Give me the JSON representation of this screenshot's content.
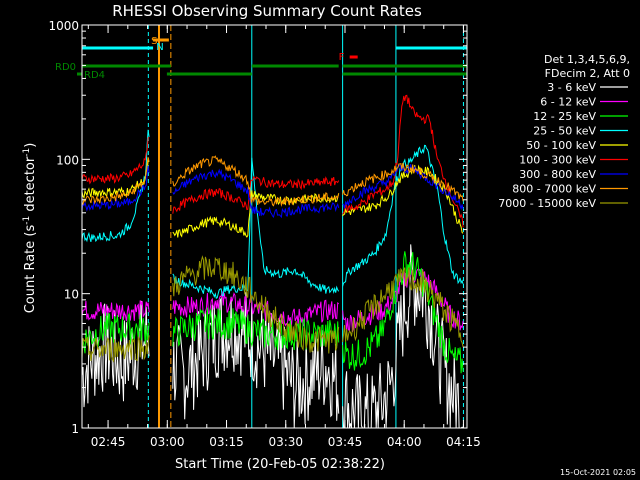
{
  "chart_data": {
    "type": "line",
    "title": "RHESSI Observing Summary Count Rates",
    "xlabel": "Start Time (20-Feb-05 02:38:22)",
    "ylabel_main": "Count Rate (s",
    "ylabel_sup1": "-1",
    "ylabel_mid": " detector",
    "ylabel_sup2": "-1",
    "ylabel_end": ")",
    "yscale": "log",
    "ylim": [
      1,
      1000
    ],
    "xlim_minutes": [
      0,
      97.5
    ],
    "x_ticks": [
      {
        "label": "02:45",
        "min": 6.6
      },
      {
        "label": "03:00",
        "min": 21.6
      },
      {
        "label": "03:15",
        "min": 36.6
      },
      {
        "label": "03:30",
        "min": 51.6
      },
      {
        "label": "03:45",
        "min": 66.6
      },
      {
        "label": "04:00",
        "min": 81.6
      },
      {
        "label": "04:15",
        "min": 96.6
      }
    ],
    "y_ticks": [
      {
        "label": "1",
        "value": 1
      },
      {
        "label": "10",
        "value": 10
      },
      {
        "label": "100",
        "value": 100
      },
      {
        "label": "1000",
        "value": 1000
      }
    ],
    "legend": {
      "position": "right",
      "header1": "Det 1,3,4,5,6,9,",
      "header2": "FDecim 2, Att 0",
      "items": [
        {
          "label": "3 - 6 keV",
          "color": "#ffffff"
        },
        {
          "label": "6 - 12 keV",
          "color": "#ff00ff"
        },
        {
          "label": "12 - 25 keV",
          "color": "#00ff00"
        },
        {
          "label": "25 - 50 keV",
          "color": "#00ffff"
        },
        {
          "label": "50 - 100 keV",
          "color": "#ffff00"
        },
        {
          "label": "100 - 300 keV",
          "color": "#ff0000"
        },
        {
          "label": "300 - 800 keV",
          "color": "#0000ff"
        },
        {
          "label": "800 - 7000 keV",
          "color": "#ff9900"
        },
        {
          "label": "7000 - 15000 keV",
          "color": "#999900"
        }
      ]
    },
    "flags": [
      {
        "label": "RD0",
        "color": "#008800",
        "segments_min": [
          [
            0,
            22.5
          ],
          [
            43,
            65
          ],
          [
            66,
            97.5
          ]
        ]
      },
      {
        "label": "RD4",
        "color": "#008800",
        "segments_min": [
          [
            21.5,
            43
          ],
          [
            66,
            97.5
          ]
        ]
      }
    ],
    "annotations": [
      {
        "label": "S",
        "color": "#ff9900",
        "min": 17.5
      },
      {
        "label": "N",
        "color": "#00ffff",
        "min": 18.8
      },
      {
        "label": "F",
        "color": "#ff0000",
        "min": 65
      }
    ],
    "markers": {
      "saa_cyan_min": [
        16.8,
        43,
        66,
        79.5,
        96.6
      ],
      "night_orange_min": [
        19.5,
        22.5
      ],
      "cyan_bar_segments_min": [
        [
          0,
          18
        ],
        [
          79.5,
          97.5
        ]
      ],
      "saa_bar_segments_min": [
        [
          18,
          22
        ]
      ]
    },
    "timestamp": "15-Oct-2021 02:05",
    "series": [
      {
        "name": "3 - 6 keV",
        "color": "#ffffff",
        "x": [
          0,
          2,
          4,
          6,
          8,
          10,
          12,
          14,
          16,
          17,
          23,
          26,
          30,
          34,
          38,
          42,
          45,
          50,
          54,
          58,
          62,
          65,
          67,
          70,
          73,
          76,
          78,
          80,
          82,
          84,
          86,
          88,
          90,
          92,
          94,
          96.5
        ],
        "y": [
          2.5,
          3.2,
          3.6,
          4,
          3.5,
          3,
          3.5,
          4,
          4.5,
          5,
          3,
          2.5,
          3.5,
          5,
          6,
          5,
          4,
          3,
          2,
          2.5,
          3,
          2,
          1.5,
          1.2,
          1.2,
          1.5,
          2,
          4,
          9,
          12,
          11,
          8,
          4,
          2.5,
          1.8,
          1.3
        ]
      },
      {
        "name": "6 - 12 keV",
        "color": "#ff00ff",
        "x": [
          0,
          3,
          6,
          9,
          12,
          16,
          17,
          23,
          26,
          30,
          34,
          38,
          42,
          46,
          50,
          54,
          58,
          62,
          65,
          67,
          70,
          73,
          76,
          79,
          81,
          83,
          85,
          87,
          89,
          91,
          93,
          96.5
        ],
        "y": [
          7.5,
          7.5,
          7.5,
          7.5,
          7.5,
          7.5,
          7.5,
          8,
          8,
          8,
          9,
          8.5,
          8,
          7.5,
          7,
          6.5,
          7,
          7.5,
          7.5,
          6,
          6.5,
          7,
          7.5,
          9,
          12,
          14,
          14,
          13,
          11,
          9,
          7,
          6
        ]
      },
      {
        "name": "12 - 25 keV",
        "color": "#00ff00",
        "x": [
          0,
          3,
          6,
          9,
          12,
          16,
          17,
          23,
          26,
          30,
          34,
          38,
          42,
          46,
          50,
          54,
          58,
          62,
          65,
          67,
          70,
          73,
          76,
          78,
          80,
          82,
          84,
          86,
          88,
          90,
          92,
          94,
          96.5
        ],
        "y": [
          4.5,
          5,
          5.5,
          5.5,
          5.5,
          5.5,
          5.5,
          5,
          5.5,
          6,
          6,
          6,
          5.5,
          5,
          5,
          5,
          5,
          5,
          5,
          3.5,
          3.5,
          4,
          5,
          8,
          12,
          17,
          16,
          13,
          9,
          6,
          4,
          3.2,
          3
        ]
      },
      {
        "name": "25 - 50 keV",
        "color": "#00ffff",
        "x": [
          0,
          3,
          6,
          9,
          12,
          14,
          16,
          16.8,
          23,
          26,
          30,
          34,
          38,
          42,
          43,
          46,
          50,
          54,
          58,
          62,
          65,
          66,
          68,
          71,
          74,
          77,
          79,
          81,
          83,
          85,
          87,
          88,
          90,
          92,
          94,
          96.5
        ],
        "y": [
          27,
          26,
          27,
          27,
          32,
          45,
          75,
          170,
          13,
          12,
          11,
          10,
          11,
          11,
          100,
          15,
          14,
          15,
          12,
          10.5,
          11,
          12,
          15,
          17,
          20,
          28,
          60,
          90,
          95,
          110,
          125,
          100,
          60,
          25,
          14,
          12
        ]
      },
      {
        "name": "50 - 100 keV",
        "color": "#ffff00",
        "x": [
          0,
          4,
          8,
          12,
          16,
          16.8,
          23,
          26,
          30,
          34,
          38,
          42,
          43,
          46,
          50,
          54,
          58,
          62,
          65,
          66,
          70,
          74,
          78,
          80,
          84,
          88,
          92,
          96.5
        ],
        "y": [
          55,
          57,
          57,
          58,
          70,
          95,
          27,
          29,
          33,
          35,
          32,
          28,
          55,
          52,
          50,
          50,
          51,
          52,
          52,
          40,
          42,
          45,
          55,
          70,
          85,
          80,
          60,
          28
        ]
      },
      {
        "name": "100 - 300 keV",
        "color": "#ff0000",
        "x": [
          0,
          4,
          8,
          12,
          16,
          16.8,
          23,
          26,
          30,
          34,
          38,
          42,
          43,
          46,
          50,
          54,
          58,
          62,
          65,
          66,
          70,
          74,
          77,
          79,
          80,
          81,
          82,
          84,
          86,
          88,
          90,
          92,
          94,
          96.5
        ],
        "y": [
          72,
          72,
          72,
          76,
          95,
          150,
          42,
          47,
          54,
          57,
          52,
          45,
          72,
          68,
          65,
          65,
          66,
          68,
          68,
          42,
          45,
          55,
          60,
          70,
          110,
          250,
          300,
          220,
          200,
          200,
          100,
          70,
          50,
          33
        ]
      },
      {
        "name": "300 - 800 keV",
        "color": "#0000ff",
        "x": [
          0,
          4,
          8,
          12,
          16,
          16.8,
          23,
          26,
          30,
          34,
          38,
          42,
          43,
          46,
          50,
          54,
          58,
          62,
          65,
          66,
          70,
          74,
          78,
          80,
          84,
          88,
          92,
          96.5
        ],
        "y": [
          45,
          45,
          46,
          48,
          62,
          85,
          55,
          65,
          75,
          80,
          70,
          58,
          42,
          40,
          40,
          42,
          43,
          44,
          44,
          45,
          55,
          62,
          70,
          85,
          85,
          70,
          58,
          45
        ]
      },
      {
        "name": "800 - 7000 keV",
        "color": "#ff9900",
        "x": [
          0,
          4,
          8,
          12,
          16,
          16.8,
          23,
          26,
          30,
          34,
          38,
          42,
          43,
          46,
          50,
          54,
          58,
          62,
          65,
          66,
          70,
          74,
          78,
          80,
          84,
          88,
          92,
          96.5
        ],
        "y": [
          50,
          50,
          52,
          55,
          70,
          100,
          65,
          78,
          92,
          98,
          85,
          70,
          50,
          48,
          48,
          50,
          51,
          52,
          52,
          55,
          65,
          72,
          80,
          88,
          85,
          75,
          65,
          50
        ]
      },
      {
        "name": "7000 - 15000 keV",
        "color": "#999900",
        "x": [
          0,
          4,
          8,
          12,
          16,
          17,
          23,
          26,
          30,
          34,
          38,
          42,
          46,
          50,
          54,
          58,
          62,
          65,
          67,
          70,
          74,
          78,
          82,
          86,
          90,
          94,
          96.5
        ],
        "y": [
          3.8,
          3.8,
          3.9,
          4,
          4,
          4,
          11,
          13,
          15,
          16,
          14,
          11,
          8,
          6,
          5,
          4.5,
          4.5,
          4.5,
          5,
          6,
          8,
          11,
          13,
          12,
          9,
          6,
          5
        ]
      }
    ]
  }
}
